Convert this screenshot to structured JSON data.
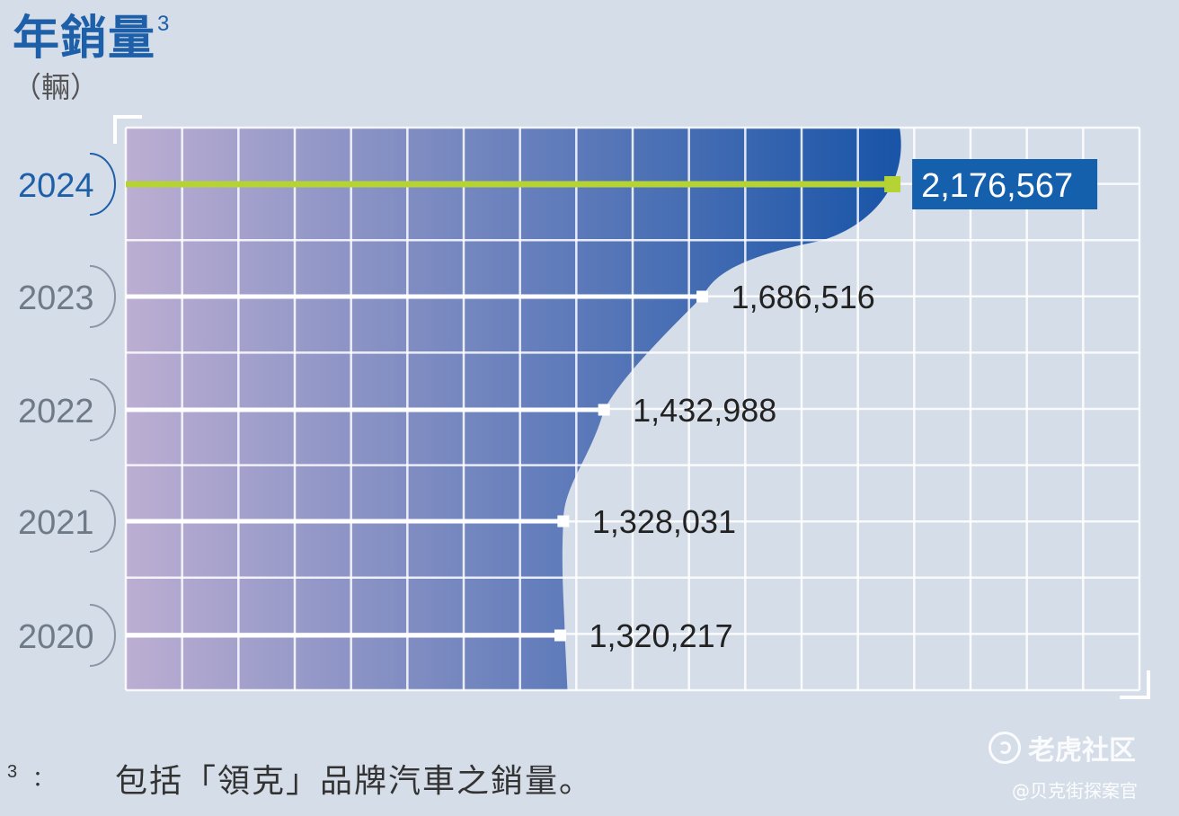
{
  "header": {
    "title": "年銷量",
    "title_superscript": "3",
    "unit": "（輛）"
  },
  "footnote": {
    "mark": "3",
    "colon": "：",
    "text": "包括「領克」品牌汽車之銷量。"
  },
  "watermark": {
    "main": "老虎社区",
    "sub": "@贝克街探案官"
  },
  "colors": {
    "title": "#1d5fa8",
    "highlight_line": "#b5d334",
    "highlight_box": "#1560ad",
    "area_dark": "#1a55a8",
    "area_light": "#bcaed2",
    "grid": "#ffffff"
  },
  "chart_data": {
    "type": "area",
    "title": "年銷量",
    "unit": "輛",
    "orientation": "horizontal",
    "categories": [
      "2024",
      "2023",
      "2022",
      "2021",
      "2020"
    ],
    "values": [
      2176567,
      1686516,
      1432988,
      1328031,
      1320217
    ],
    "value_labels": [
      "2,176,567",
      "1,686,516",
      "1,432,988",
      "1,328,031",
      "1,320,217"
    ],
    "highlight": "2024",
    "grid": true
  }
}
